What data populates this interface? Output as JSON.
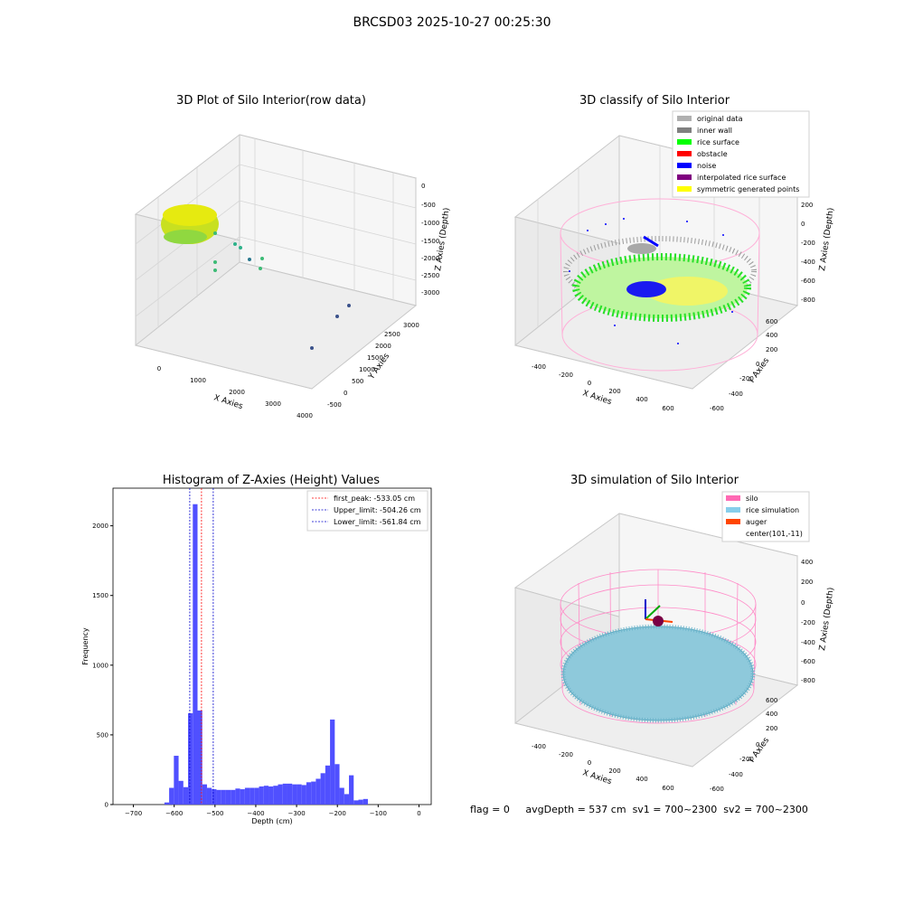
{
  "page": {
    "suptitle": "BRCSD03 2025-10-27 00:25:30"
  },
  "panels": {
    "raw": {
      "title": "3D Plot of Silo Interior(row data)",
      "xlabel": "X Axies",
      "ylabel": "Y Axies",
      "zlabel": "Z Axies (Depth)",
      "xticks": [
        "0",
        "1000",
        "2000",
        "3000",
        "4000"
      ],
      "yticks": [
        "-500",
        "0",
        "500",
        "1000",
        "1500",
        "2000",
        "2500",
        "3000"
      ],
      "zticks": [
        "0",
        "-500",
        "-1000",
        "-1500",
        "-2000",
        "-2500",
        "-3000"
      ]
    },
    "classify": {
      "title": "3D classify of Silo Interior",
      "xlabel": "X Axies",
      "ylabel": "Y Axies",
      "zlabel": "Z Axies (Depth)",
      "xticks": [
        "-400",
        "-200",
        "0",
        "200",
        "400",
        "600"
      ],
      "yticks": [
        "-600",
        "-400",
        "-200",
        "0",
        "200",
        "400",
        "600"
      ],
      "zticks": [
        "200",
        "0",
        "-200",
        "-400",
        "-600",
        "-800"
      ],
      "legend": [
        {
          "label": "original data",
          "color": "#b0b0b0"
        },
        {
          "label": "inner wall",
          "color": "#808080"
        },
        {
          "label": "rice surface",
          "color": "#00ff00"
        },
        {
          "label": "obstacle",
          "color": "#ff0000"
        },
        {
          "label": "noise",
          "color": "#0000ff"
        },
        {
          "label": "interpolated rice surface",
          "color": "#800080"
        },
        {
          "label": "symmetric generated points",
          "color": "#ffff00"
        }
      ]
    },
    "sim": {
      "title": "3D simulation of Silo Interior",
      "xlabel": "X Axies",
      "ylabel": "Y Axies",
      "zlabel": "Z Axies (Depth)",
      "xticks": [
        "-400",
        "-200",
        "0",
        "200",
        "400",
        "600"
      ],
      "yticks": [
        "-600",
        "-400",
        "-200",
        "0",
        "200",
        "400",
        "600"
      ],
      "zticks": [
        "400",
        "200",
        "0",
        "-200",
        "-400",
        "-600",
        "-800"
      ],
      "legend": [
        {
          "label": "silo",
          "color": "#ff69b4"
        },
        {
          "label": "rice simulation",
          "color": "#87ceeb"
        },
        {
          "label": "auger",
          "color": "#ff4500"
        },
        {
          "label": "center(101,-11)",
          "color": ""
        }
      ]
    }
  },
  "colors": {
    "hist_bar": "#5050ff",
    "peak": "#ff0000",
    "limit": "#0000cc",
    "silo": "#ff69b4",
    "rice": "#87ceeb",
    "grid": "#dcdcdc"
  },
  "chart_data": {
    "type": "bar",
    "title": "Histogram of Z-Axies (Height) Values",
    "xlabel": "Depth (cm)",
    "ylabel": "Frequency",
    "xlim": [
      -750,
      30
    ],
    "ylim": [
      0,
      2270
    ],
    "xticks": [
      -700,
      -600,
      -500,
      -400,
      -300,
      -200,
      -100,
      0
    ],
    "yticks": [
      0,
      500,
      1000,
      1500,
      2000
    ],
    "bin_edges_start": -624,
    "bin_width": 11.6,
    "values": [
      15,
      120,
      350,
      170,
      125,
      655,
      2155,
      675,
      145,
      120,
      110,
      105,
      105,
      105,
      105,
      115,
      110,
      120,
      120,
      120,
      130,
      135,
      130,
      135,
      145,
      150,
      150,
      145,
      145,
      140,
      160,
      165,
      185,
      225,
      280,
      610,
      290,
      120,
      75,
      210,
      30,
      35,
      40
    ],
    "lines": [
      {
        "label": "first_peak: -533.05 cm",
        "x": -533.05,
        "color": "#ff0000"
      },
      {
        "label": "Upper_limit: -504.26 cm",
        "x": -504.26,
        "color": "#0000cc"
      },
      {
        "label": "Lower_limit: -561.84 cm",
        "x": -561.84,
        "color": "#0000cc"
      }
    ],
    "legend": "top-right"
  },
  "footer": {
    "flag": "flag = 0",
    "avg": "avgDepth = 537 cm",
    "sv1": "sv1 = 700~2300",
    "sv2": "sv2 = 700~2300"
  }
}
